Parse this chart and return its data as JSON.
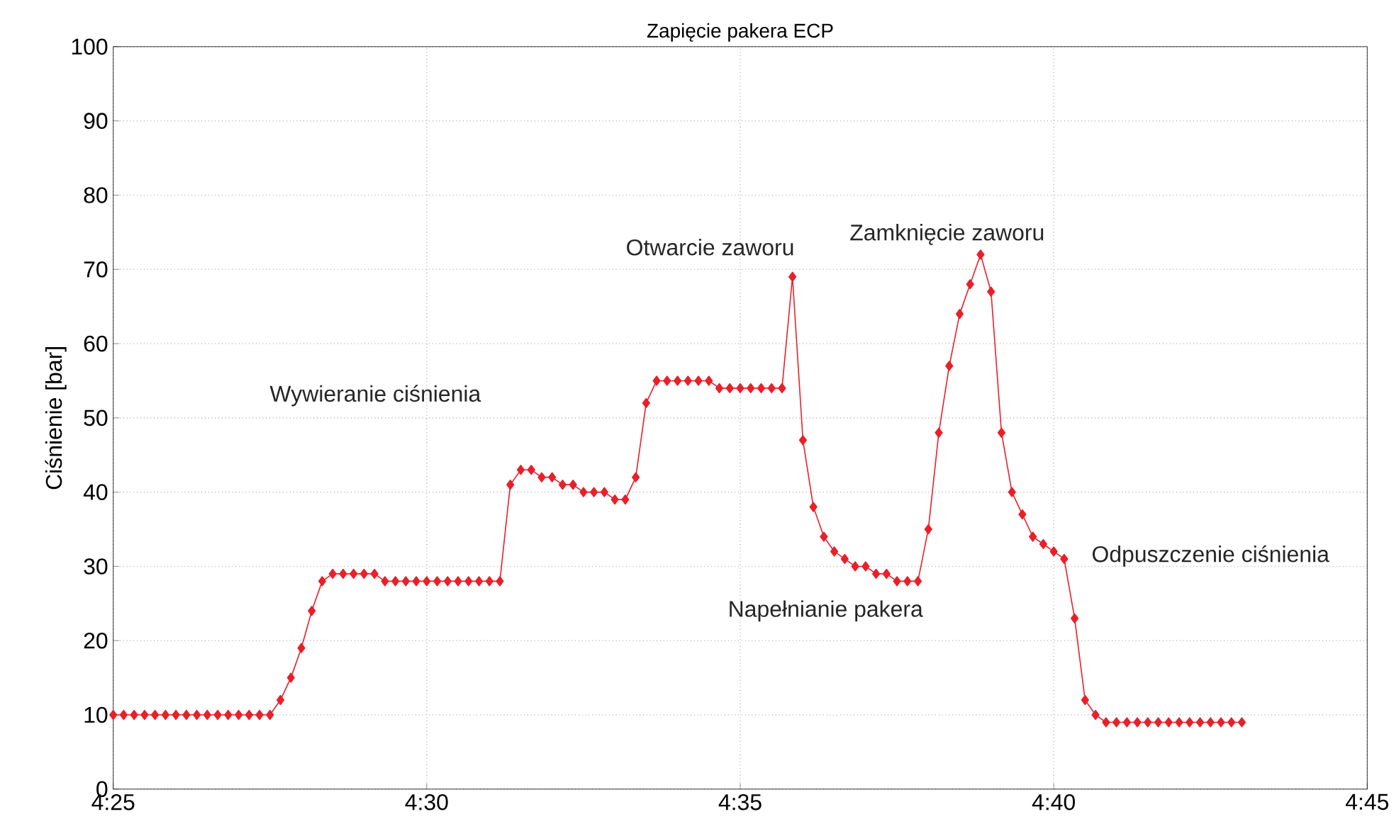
{
  "chart_data": {
    "type": "line",
    "title": "Zapięcie pakera ECP",
    "ylabel": "Ciśnienie [bar]",
    "x": [
      4.41667,
      4.41944,
      4.42222,
      4.425,
      4.42778,
      4.43056,
      4.43333,
      4.43611,
      4.43889,
      4.44167,
      4.44444,
      4.44722,
      4.45,
      4.45278,
      4.45556,
      4.45833,
      4.46111,
      4.46389,
      4.46667,
      4.46944,
      4.47222,
      4.475,
      4.47778,
      4.48056,
      4.48333,
      4.48611,
      4.48889,
      4.49167,
      4.49444,
      4.49722,
      4.5,
      4.50278,
      4.50556,
      4.50833,
      4.51111,
      4.51389,
      4.51667,
      4.51944,
      4.52222,
      4.525,
      4.52778,
      4.53056,
      4.53333,
      4.53611,
      4.53889,
      4.54167,
      4.54444,
      4.54722,
      4.55,
      4.55278,
      4.55556,
      4.55833,
      4.56111,
      4.56389,
      4.56667,
      4.56944,
      4.57222,
      4.575,
      4.57778,
      4.58056,
      4.58333,
      4.58611,
      4.58889,
      4.59167,
      4.59444,
      4.59722,
      4.6,
      4.60278,
      4.60556,
      4.60833,
      4.61111,
      4.61389,
      4.61667,
      4.61944,
      4.62222,
      4.625,
      4.62778,
      4.63056,
      4.63333,
      4.63611,
      4.63889,
      4.64167,
      4.64444,
      4.64722,
      4.65,
      4.65278,
      4.65556,
      4.65833,
      4.66111,
      4.66389,
      4.66667,
      4.66944,
      4.67222,
      4.675,
      4.67778,
      4.68056,
      4.68333,
      4.68611,
      4.68889,
      4.69167,
      4.69444,
      4.69722,
      4.7,
      4.70278,
      4.70556,
      4.70833,
      4.71111,
      4.71389,
      4.71667
    ],
    "series": [
      {
        "color": "#e8202a",
        "values": [
          10,
          10,
          10,
          10,
          10,
          10,
          10,
          10,
          10,
          10,
          10,
          10,
          10,
          10,
          10,
          10,
          12,
          15,
          19,
          24,
          28,
          29,
          29,
          29,
          29,
          29,
          28,
          28,
          28,
          28,
          28,
          28,
          28,
          28,
          28,
          28,
          28,
          28,
          41,
          43,
          43,
          42,
          42,
          41,
          41,
          40,
          40,
          40,
          39,
          39,
          42,
          52,
          55,
          55,
          55,
          55,
          55,
          55,
          54,
          54,
          54,
          54,
          54,
          54,
          54,
          69,
          47,
          38,
          34,
          32,
          31,
          30,
          30,
          29,
          29,
          28,
          28,
          28,
          35,
          48,
          57,
          64,
          68,
          72,
          67,
          48,
          40,
          37,
          34,
          33,
          32,
          31,
          23,
          12,
          10,
          9,
          9,
          9,
          9,
          9,
          9,
          9,
          9,
          9,
          9,
          9,
          9,
          9,
          9
        ]
      }
    ],
    "xlim": [
      4.41667,
      4.75
    ],
    "xticks": [
      {
        "value": 4.41667,
        "label": "4:25"
      },
      {
        "value": 4.5,
        "label": "4:30"
      },
      {
        "value": 4.58333,
        "label": "4:35"
      },
      {
        "value": 4.66667,
        "label": "4:40"
      },
      {
        "value": 4.75,
        "label": "4:45"
      }
    ],
    "ylim": [
      0,
      100
    ],
    "yticks": [
      0,
      10,
      20,
      30,
      40,
      50,
      60,
      70,
      80,
      90,
      100
    ],
    "grid": true,
    "marker": "diamond",
    "line_style": "solid",
    "annotations": [
      "Wywieranie ciśnienia",
      "Otwarcie zaworu",
      "Zamknięcie zaworu",
      "Napełnianie pakera",
      "Odpuszczenie ciśnienia"
    ]
  }
}
